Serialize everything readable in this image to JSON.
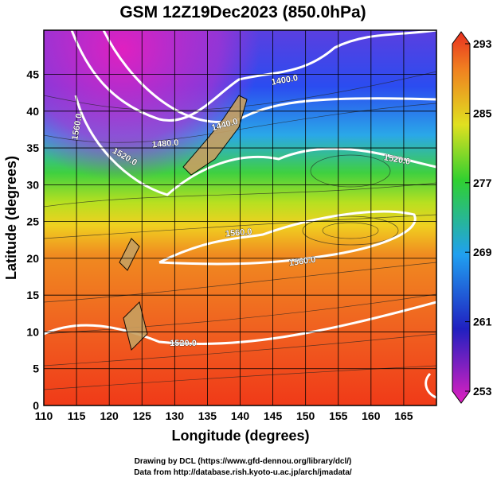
{
  "title": "GSM 12Z19Dec2023 (850.0hPa)",
  "map": {
    "xaxis": {
      "label": "Longitude (degrees)",
      "lim": [
        110,
        170
      ],
      "ticks": [
        110,
        115,
        120,
        125,
        130,
        135,
        140,
        145,
        150,
        155,
        160,
        165
      ]
    },
    "yaxis": {
      "label": "Latitude  (degrees)",
      "lim": [
        0,
        51
      ],
      "ticks": [
        0,
        5,
        10,
        15,
        20,
        25,
        30,
        35,
        40,
        45
      ]
    },
    "colorbar": {
      "lim": [
        253,
        293
      ],
      "ticks": [
        253,
        261,
        269,
        277,
        285,
        293
      ]
    },
    "contour_labels": [
      "1400.0",
      "1440.0",
      "1480.0",
      "1520.0",
      "1520.0",
      "1560.0",
      "1560.0",
      "1560.0",
      "1520.0"
    ]
  },
  "footer": [
    "Drawing by DCL (https://www.gfd-dennou.org/library/dcl/)",
    "Data from http://database.rish.kyoto-u.ac.jp/arch/jmadata/"
  ]
}
